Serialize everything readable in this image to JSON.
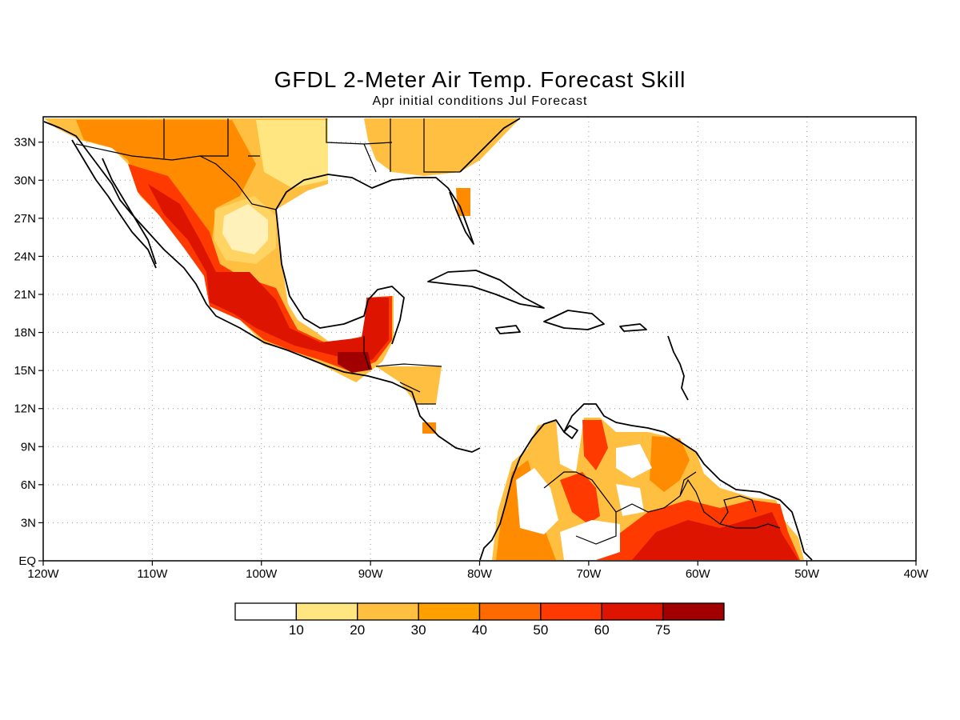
{
  "title": "GFDL 2-Meter Air Temp. Forecast Skill",
  "subtitle": "Apr initial conditions  Jul Forecast",
  "map": {
    "lon_range": [
      -120,
      -40
    ],
    "lat_range": [
      0,
      35
    ],
    "lon_ticks": [
      {
        "value": -120,
        "label": "120W"
      },
      {
        "value": -110,
        "label": "110W"
      },
      {
        "value": -100,
        "label": "100W"
      },
      {
        "value": -90,
        "label": "90W"
      },
      {
        "value": -80,
        "label": "80W"
      },
      {
        "value": -70,
        "label": "70W"
      },
      {
        "value": -60,
        "label": "60W"
      },
      {
        "value": -50,
        "label": "50W"
      },
      {
        "value": -40,
        "label": "40W"
      }
    ],
    "lat_ticks": [
      {
        "value": 0,
        "label": "EQ"
      },
      {
        "value": 3,
        "label": "3N"
      },
      {
        "value": 6,
        "label": "6N"
      },
      {
        "value": 9,
        "label": "9N"
      },
      {
        "value": 12,
        "label": "12N"
      },
      {
        "value": 15,
        "label": "15N"
      },
      {
        "value": 18,
        "label": "18N"
      },
      {
        "value": 21,
        "label": "21N"
      },
      {
        "value": 24,
        "label": "24N"
      },
      {
        "value": 27,
        "label": "27N"
      },
      {
        "value": 30,
        "label": "30N"
      },
      {
        "value": 33,
        "label": "33N"
      }
    ],
    "grid": true
  },
  "colorbar": {
    "levels": [
      "10",
      "20",
      "30",
      "40",
      "50",
      "60",
      "75"
    ],
    "colors": [
      "#ffffff",
      "#ffe680",
      "#ffbf40",
      "#ffa000",
      "#ff6a00",
      "#ff3a00",
      "#dc1400",
      "#a00000"
    ]
  }
}
